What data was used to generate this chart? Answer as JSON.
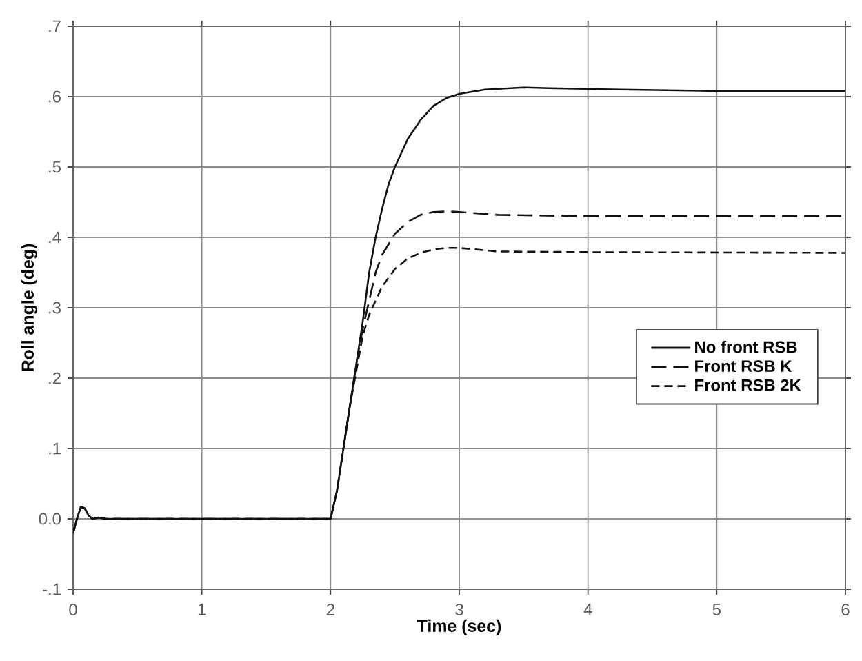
{
  "chart_data": {
    "type": "line",
    "xlabel": "Time (sec)",
    "ylabel": "Roll angle (deg)",
    "xlim": [
      0,
      6
    ],
    "ylim": [
      -0.1,
      0.7
    ],
    "xticks": [
      0,
      1,
      2,
      3,
      4,
      5,
      6
    ],
    "yticks": [
      {
        "value": -0.1,
        "label": "-.1"
      },
      {
        "value": 0,
        "label": "0.0"
      },
      {
        "value": 0.1,
        "label": ".1"
      },
      {
        "value": 0.2,
        "label": ".2"
      },
      {
        "value": 0.3,
        "label": ".3"
      },
      {
        "value": 0.4,
        "label": ".4"
      },
      {
        "value": 0.5,
        "label": ".5"
      },
      {
        "value": 0.6,
        "label": ".6"
      },
      {
        "value": 0.7,
        "label": ".7"
      }
    ],
    "grid": true,
    "legend": "right",
    "series": [
      {
        "name": "No front RSB",
        "color": "#111111",
        "line_style": "solid",
        "x": [
          0,
          0.03,
          0.06,
          0.09,
          0.12,
          0.15,
          0.2,
          0.25,
          1.9,
          1.97,
          2.0,
          2.05,
          2.1,
          2.15,
          2.2,
          2.25,
          2.3,
          2.35,
          2.4,
          2.45,
          2.5,
          2.6,
          2.7,
          2.8,
          2.9,
          3.0,
          3.2,
          3.5,
          3.7,
          4.25,
          5,
          6
        ],
        "values": [
          -0.02,
          0.0,
          0.017,
          0.015,
          0.005,
          0.0,
          0.002,
          0.0,
          0.0,
          0.0,
          0.0,
          0.04,
          0.1,
          0.16,
          0.22,
          0.28,
          0.35,
          0.4,
          0.44,
          0.475,
          0.5,
          0.54,
          0.567,
          0.587,
          0.598,
          0.604,
          0.61,
          0.613,
          0.612,
          0.61,
          0.608,
          0.608
        ]
      },
      {
        "name": "Front RSB K",
        "color": "#111111",
        "line_style": "dashed",
        "x": [
          0,
          0.03,
          0.06,
          0.09,
          0.12,
          0.15,
          0.2,
          0.25,
          1.9,
          1.97,
          2.0,
          2.05,
          2.1,
          2.15,
          2.2,
          2.25,
          2.3,
          2.35,
          2.4,
          2.5,
          2.6,
          2.7,
          2.8,
          2.9,
          3.0,
          3.3,
          4,
          6
        ],
        "values": [
          -0.02,
          0.0,
          0.017,
          0.015,
          0.005,
          0.0,
          0.002,
          0.0,
          0.0,
          0.0,
          0.0,
          0.04,
          0.1,
          0.16,
          0.22,
          0.27,
          0.31,
          0.35,
          0.375,
          0.405,
          0.422,
          0.432,
          0.436,
          0.437,
          0.436,
          0.432,
          0.43,
          0.43
        ]
      },
      {
        "name": "Front RSB 2K",
        "color": "#111111",
        "line_style": "dashed",
        "x": [
          0,
          0.03,
          0.06,
          0.09,
          0.12,
          0.15,
          0.2,
          0.25,
          1.9,
          1.97,
          2.0,
          2.05,
          2.1,
          2.15,
          2.2,
          2.25,
          2.3,
          2.35,
          2.4,
          2.5,
          2.6,
          2.7,
          2.8,
          2.9,
          3.0,
          3.3,
          4,
          6
        ],
        "values": [
          -0.02,
          0.0,
          0.017,
          0.015,
          0.005,
          0.0,
          0.002,
          0.0,
          0.0,
          0.0,
          0.0,
          0.04,
          0.1,
          0.16,
          0.21,
          0.26,
          0.29,
          0.31,
          0.33,
          0.355,
          0.37,
          0.378,
          0.383,
          0.385,
          0.385,
          0.38,
          0.379,
          0.378
        ]
      }
    ]
  }
}
